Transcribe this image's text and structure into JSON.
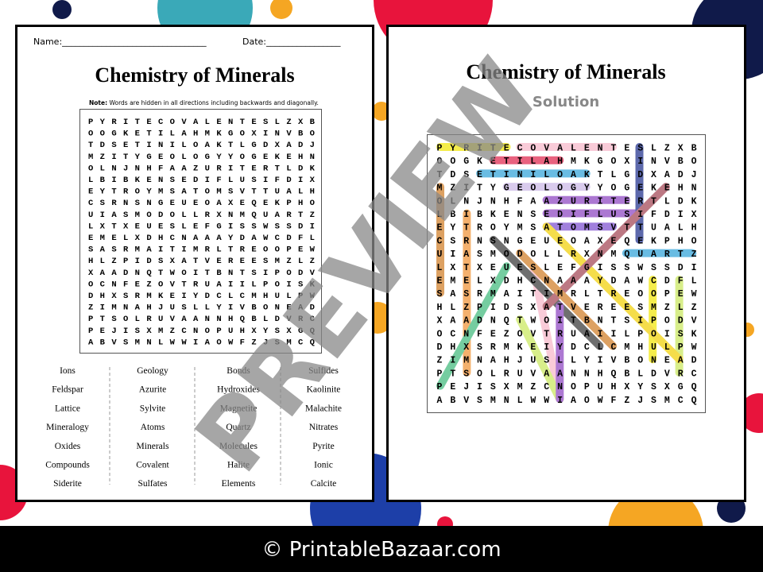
{
  "left_page": {
    "name_label": "Name:_________________________________",
    "date_label": "Date:_________________",
    "title": "Chemistry of Minerals",
    "note_label": "Note:",
    "note": "Words are hidden in all directions including backwards and diagonally."
  },
  "grid": [
    "PYRITECOVALENTESLZXB",
    "OOGKETILAHMKGOXINVBO",
    "TDSETINILOAKTLGDXADJ",
    "MZITYGEOLOGYYOGEKEHN",
    "OLNJNHFAAZURITERTLDK",
    "LBIBKENSEDIFLUSIFDIX",
    "EYTROYMSATOMSVTTUALH",
    "CSRNSNGEUEOAXEQEKPHO",
    "UIASMODOLLRXNMQUARTZ",
    "LXTXEUESLEFGISSWSSDI",
    "EMELXDHCNAAAYDAWCDFL",
    "SASRMAITIMRLTREOOPEW",
    "HLZPIDSXATVEREESMZLZ",
    "XAADNQTWOITBNTSIPODV",
    "OCNFEZOVTRUAIILPOISK",
    "DHXSRMKEIYDCLCMHULPW",
    "ZIMNAHJUSLLYIVBONEAD",
    "PTSOLRUVAANNHQBLDVRC",
    "PEJISXMZCNOPUHXYSXGQ",
    "ABVSMNLWWIAOWFZJSMCQ"
  ],
  "word_list": [
    [
      "Ions",
      "Feldspar",
      "Lattice",
      "Mineralogy",
      "Oxides",
      "Compounds",
      "Siderite"
    ],
    [
      "Geology",
      "Azurite",
      "Sylvite",
      "Atoms",
      "Minerals",
      "Covalent",
      "Sulfates"
    ],
    [
      "Bonds",
      "Hydroxides",
      "Magnetite",
      "Quartz",
      "Molecules",
      "Halite",
      "Elements"
    ],
    [
      "Sulfides",
      "Kaolinite",
      "Malachite",
      "Nitrates",
      "Pyrite",
      "Ionic",
      "Calcite"
    ]
  ],
  "right_page": {
    "title": "Chemistry of Minerals",
    "subtitle": "Solution"
  },
  "watermark": "PREVIEW",
  "footer": "© PrintableBazaar.com"
}
